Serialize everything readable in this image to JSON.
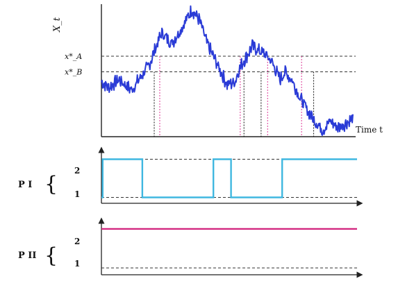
{
  "chart_data": [
    {
      "type": "line",
      "ylabel": "X_t",
      "xlabel": "Time t",
      "thresholds": [
        {
          "label": "x*_A",
          "y": 0.62
        },
        {
          "label": "x*_B",
          "y": 0.5
        }
      ],
      "ylim": [
        0,
        1
      ],
      "xlim": [
        0,
        1
      ],
      "series": [
        {
          "color": "#2a3bd6",
          "x": [
            0.0,
            0.03,
            0.07,
            0.12,
            0.16,
            0.19,
            0.21,
            0.24,
            0.28,
            0.32,
            0.36,
            0.39,
            0.42,
            0.46,
            0.5,
            0.53,
            0.55,
            0.58,
            0.6,
            0.62,
            0.65,
            0.68,
            0.71,
            0.73,
            0.76,
            0.79,
            0.82,
            0.85,
            0.88,
            0.91,
            0.94,
            0.97,
            1.0
          ],
          "y": [
            0.42,
            0.38,
            0.44,
            0.36,
            0.47,
            0.55,
            0.66,
            0.8,
            0.72,
            0.84,
            0.98,
            0.9,
            0.72,
            0.56,
            0.4,
            0.42,
            0.53,
            0.63,
            0.7,
            0.67,
            0.64,
            0.57,
            0.44,
            0.5,
            0.43,
            0.3,
            0.2,
            0.12,
            0.05,
            0.12,
            0.07,
            0.1,
            0.14
          ]
        }
      ],
      "vertical_markers": [
        {
          "x": 0.21,
          "style": "dotted-black"
        },
        {
          "x": 0.232,
          "style": "dotted-pink"
        },
        {
          "x": 0.552,
          "style": "dotted-pink"
        },
        {
          "x": 0.567,
          "style": "dotted-black"
        },
        {
          "x": 0.635,
          "style": "dotted-black"
        },
        {
          "x": 0.661,
          "style": "dotted-pink"
        },
        {
          "x": 0.796,
          "style": "dotted-pink"
        },
        {
          "x": 0.844,
          "style": "dotted-black"
        }
      ]
    },
    {
      "type": "line",
      "title": "P I",
      "ylim": [
        0.7,
        2.3
      ],
      "xlim": [
        0,
        1
      ],
      "ticks": [
        {
          "label": "2",
          "y": 2
        },
        {
          "label": "1",
          "y": 1
        }
      ],
      "series": [
        {
          "color": "#3fb7e0",
          "step": true,
          "x": [
            0.0,
            0.005,
            0.005,
            0.16,
            0.16,
            0.438,
            0.438,
            0.507,
            0.507,
            0.707,
            0.707,
            1.0
          ],
          "y": [
            1,
            1,
            2,
            2,
            1,
            1,
            2,
            2,
            1,
            1,
            2,
            2
          ]
        }
      ]
    },
    {
      "type": "line",
      "title": "P II",
      "ylim": [
        0.7,
        2.3
      ],
      "xlim": [
        0,
        1
      ],
      "ticks": [
        {
          "label": "2",
          "y": 2
        },
        {
          "label": "1",
          "y": 1
        }
      ],
      "series": [
        {
          "color": "#d2277f",
          "step": true,
          "x": [
            0.0,
            1.0
          ],
          "y": [
            2,
            2
          ]
        }
      ]
    }
  ]
}
